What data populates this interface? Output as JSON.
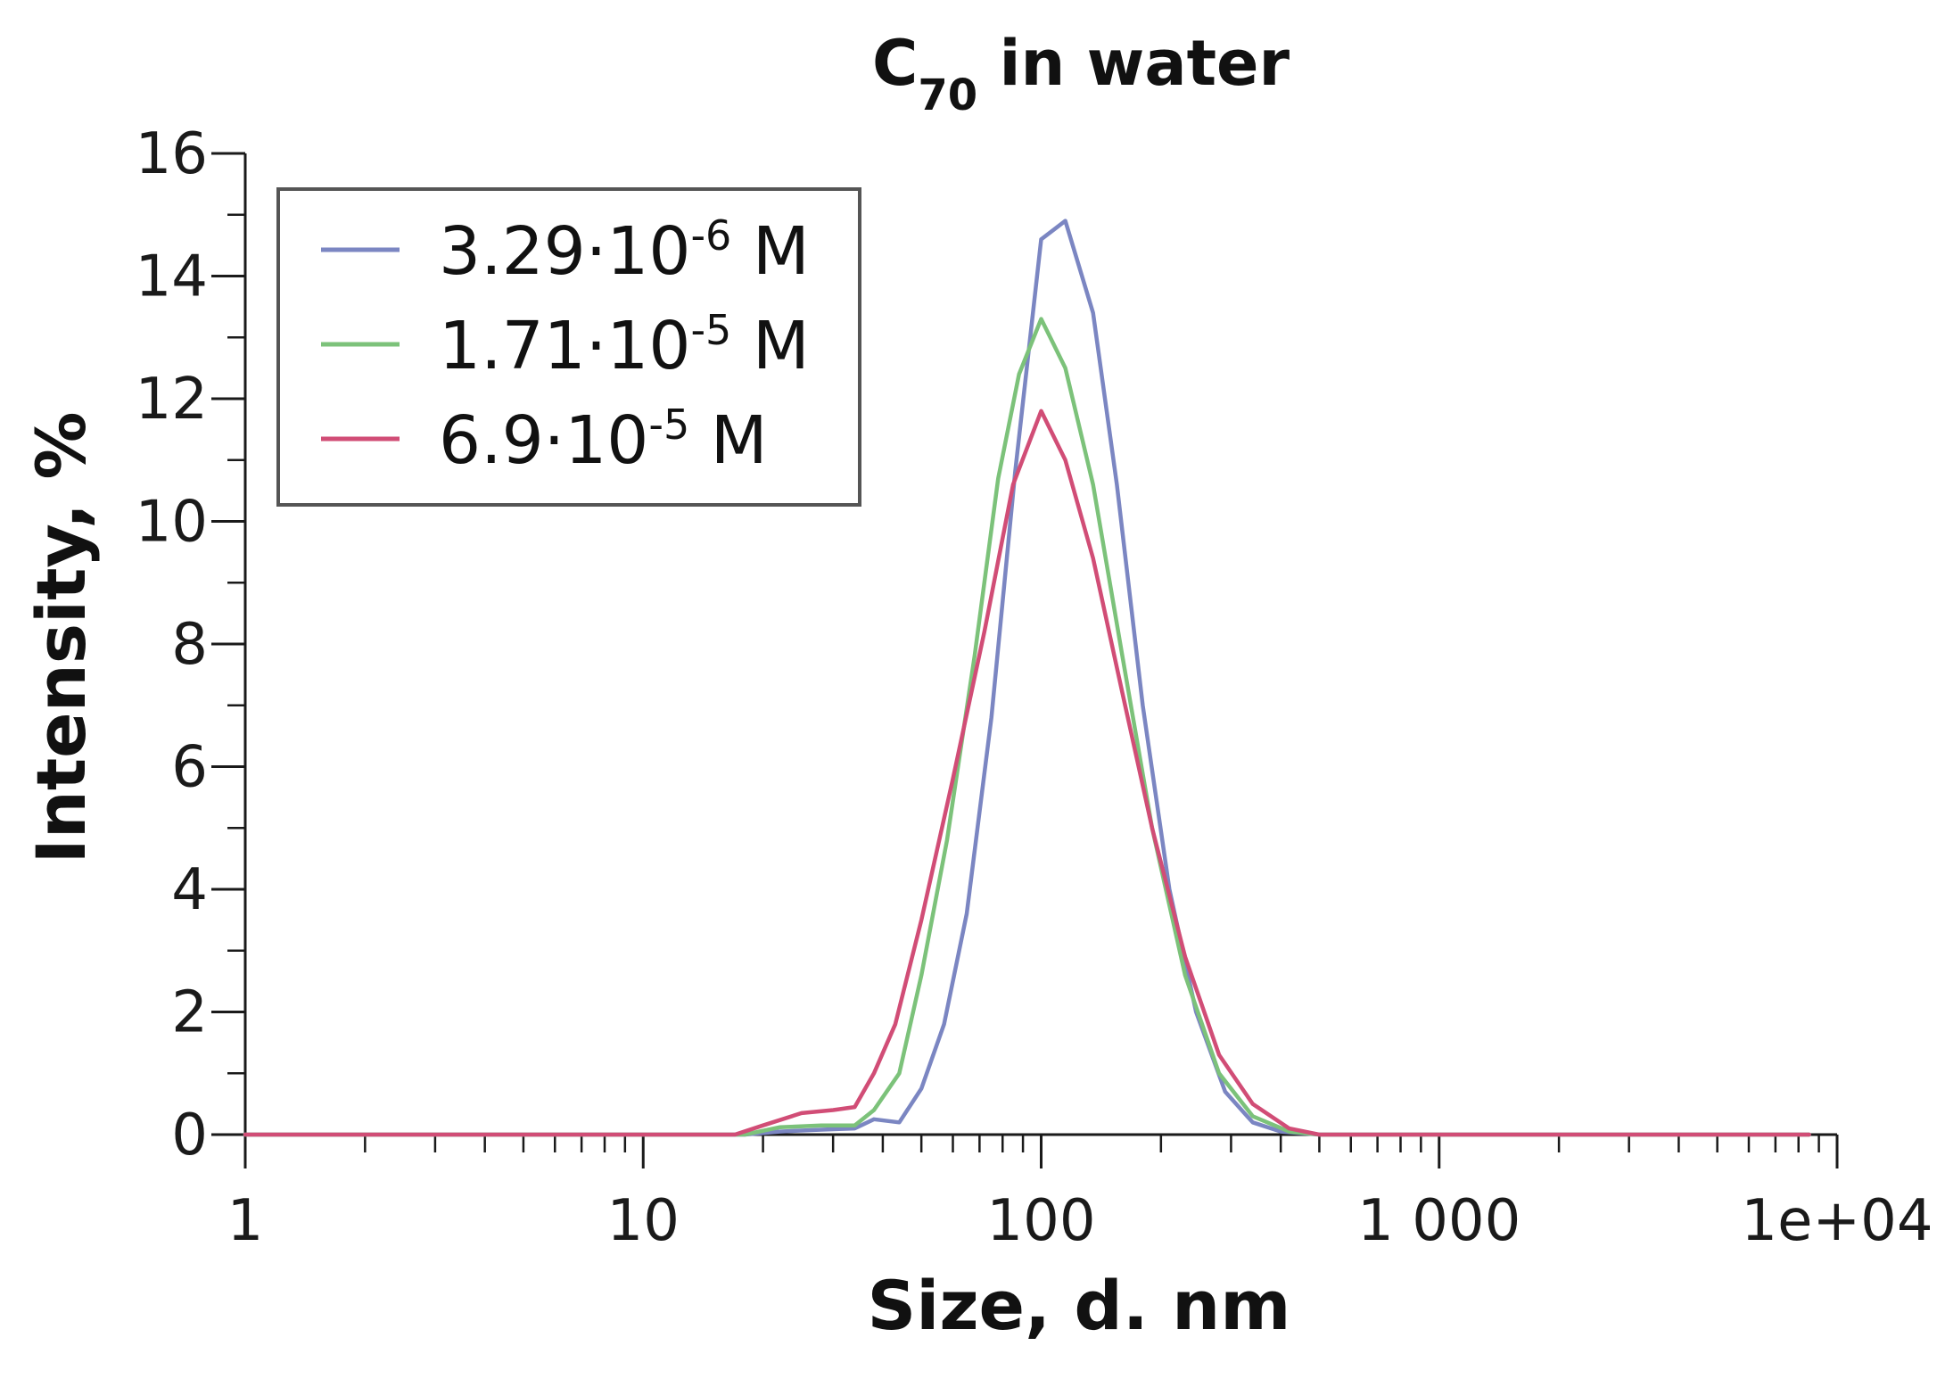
{
  "chart_data": {
    "type": "line",
    "title": {
      "main": "C",
      "sub": "70",
      "rest": " in water"
    },
    "xlabel": "Size, d. nm",
    "ylabel": "Intensity, %",
    "x_scale": "log",
    "xlim": [
      1,
      10000
    ],
    "ylim": [
      0,
      16
    ],
    "x_ticks": [
      {
        "value": 1,
        "label": "1"
      },
      {
        "value": 10,
        "label": "10"
      },
      {
        "value": 100,
        "label": "100"
      },
      {
        "value": 1000,
        "label": "1 000"
      },
      {
        "value": 10000,
        "label": "1e+04"
      }
    ],
    "y_ticks": [
      {
        "value": 0,
        "label": "0"
      },
      {
        "value": 2,
        "label": "2"
      },
      {
        "value": 4,
        "label": "4"
      },
      {
        "value": 6,
        "label": "6"
      },
      {
        "value": 8,
        "label": "8"
      },
      {
        "value": 10,
        "label": "10"
      },
      {
        "value": 12,
        "label": "12"
      },
      {
        "value": 14,
        "label": "14"
      },
      {
        "value": 16,
        "label": "16"
      }
    ],
    "grid": false,
    "legend_position": "top-left",
    "series": [
      {
        "name": "3.29·10-6 M",
        "legend": {
          "base": "3.29·10",
          "exp": "-6",
          "unit": " M"
        },
        "color": "#7b86c2",
        "points": [
          [
            1,
            0
          ],
          [
            5,
            0
          ],
          [
            10,
            0
          ],
          [
            18,
            0
          ],
          [
            22,
            0.05
          ],
          [
            28,
            0.08
          ],
          [
            34,
            0.1
          ],
          [
            38,
            0.25
          ],
          [
            44,
            0.2
          ],
          [
            50,
            0.75
          ],
          [
            57,
            1.8
          ],
          [
            65,
            3.6
          ],
          [
            75,
            6.8
          ],
          [
            86,
            10.8
          ],
          [
            100,
            14.6
          ],
          [
            115,
            14.9
          ],
          [
            135,
            13.4
          ],
          [
            155,
            10.6
          ],
          [
            180,
            7.0
          ],
          [
            210,
            4.0
          ],
          [
            245,
            2.0
          ],
          [
            290,
            0.7
          ],
          [
            340,
            0.2
          ],
          [
            400,
            0.05
          ],
          [
            500,
            0
          ],
          [
            1000,
            0
          ],
          [
            5000,
            0
          ],
          [
            8500,
            0
          ]
        ]
      },
      {
        "name": "1.71·10-5 M",
        "legend": {
          "base": "1.71·10",
          "exp": "-5",
          "unit": " M"
        },
        "color": "#7cc27a",
        "points": [
          [
            1,
            0
          ],
          [
            5,
            0
          ],
          [
            10,
            0
          ],
          [
            18,
            0
          ],
          [
            22,
            0.12
          ],
          [
            28,
            0.15
          ],
          [
            34,
            0.15
          ],
          [
            38,
            0.4
          ],
          [
            44,
            1.0
          ],
          [
            50,
            2.6
          ],
          [
            58,
            4.8
          ],
          [
            68,
            7.8
          ],
          [
            78,
            10.7
          ],
          [
            88,
            12.4
          ],
          [
            100,
            13.3
          ],
          [
            115,
            12.5
          ],
          [
            135,
            10.6
          ],
          [
            160,
            7.8
          ],
          [
            190,
            5.0
          ],
          [
            230,
            2.6
          ],
          [
            280,
            1.0
          ],
          [
            340,
            0.3
          ],
          [
            420,
            0.05
          ],
          [
            500,
            0
          ],
          [
            1000,
            0
          ],
          [
            5000,
            0
          ],
          [
            8500,
            0
          ]
        ]
      },
      {
        "name": "6.9·10-5 M",
        "legend": {
          "base": "6.9·10",
          "exp": "-5",
          "unit": " M"
        },
        "color": "#d14d76",
        "points": [
          [
            1,
            0
          ],
          [
            5,
            0
          ],
          [
            10,
            0
          ],
          [
            17,
            0
          ],
          [
            20,
            0.15
          ],
          [
            25,
            0.35
          ],
          [
            30,
            0.4
          ],
          [
            34,
            0.45
          ],
          [
            38,
            1.0
          ],
          [
            43,
            1.8
          ],
          [
            50,
            3.5
          ],
          [
            60,
            5.8
          ],
          [
            72,
            8.2
          ],
          [
            85,
            10.6
          ],
          [
            100,
            11.8
          ],
          [
            115,
            11.0
          ],
          [
            135,
            9.4
          ],
          [
            160,
            7.2
          ],
          [
            190,
            5.0
          ],
          [
            230,
            2.9
          ],
          [
            280,
            1.3
          ],
          [
            340,
            0.5
          ],
          [
            420,
            0.1
          ],
          [
            500,
            0
          ],
          [
            1000,
            0
          ],
          [
            5000,
            0
          ],
          [
            8500,
            0
          ]
        ]
      }
    ]
  }
}
